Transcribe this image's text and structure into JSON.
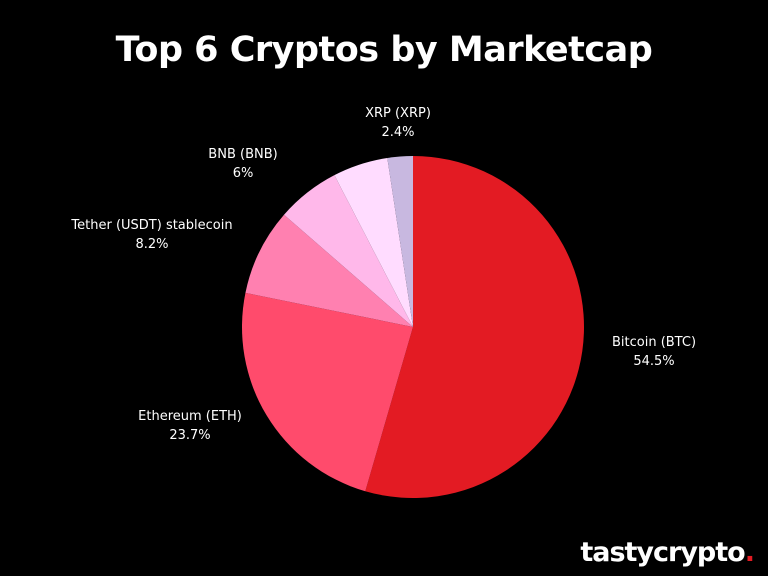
{
  "chart_data": {
    "type": "pie",
    "title": "Top 6 Cryptos by Marketcap",
    "start_angle_deg": 0,
    "direction": "clockwise",
    "slices": [
      {
        "name": "Bitcoin (BTC)",
        "value": 54.5,
        "value_label": "54.5%",
        "color": "#e31b23"
      },
      {
        "name": "Ethereum (ETH)",
        "value": 23.7,
        "value_label": "23.7%",
        "color": "#ff4b6c"
      },
      {
        "name": "Tether (USDT) stablecoin",
        "value": 8.2,
        "value_label": "8.2%",
        "color": "#ff80b0"
      },
      {
        "name": "BNB (BNB)",
        "value": 6,
        "value_label": "6%",
        "color": "#ffb8ea"
      },
      {
        "name": "",
        "value": 5.2,
        "value_label": "",
        "color": "#ffdcff"
      },
      {
        "name": "XRP (XRP)",
        "value": 2.4,
        "value_label": "2.4%",
        "color": "#c8b8e0"
      }
    ]
  },
  "brand": {
    "name": "tastycrypto",
    "dot": "."
  }
}
